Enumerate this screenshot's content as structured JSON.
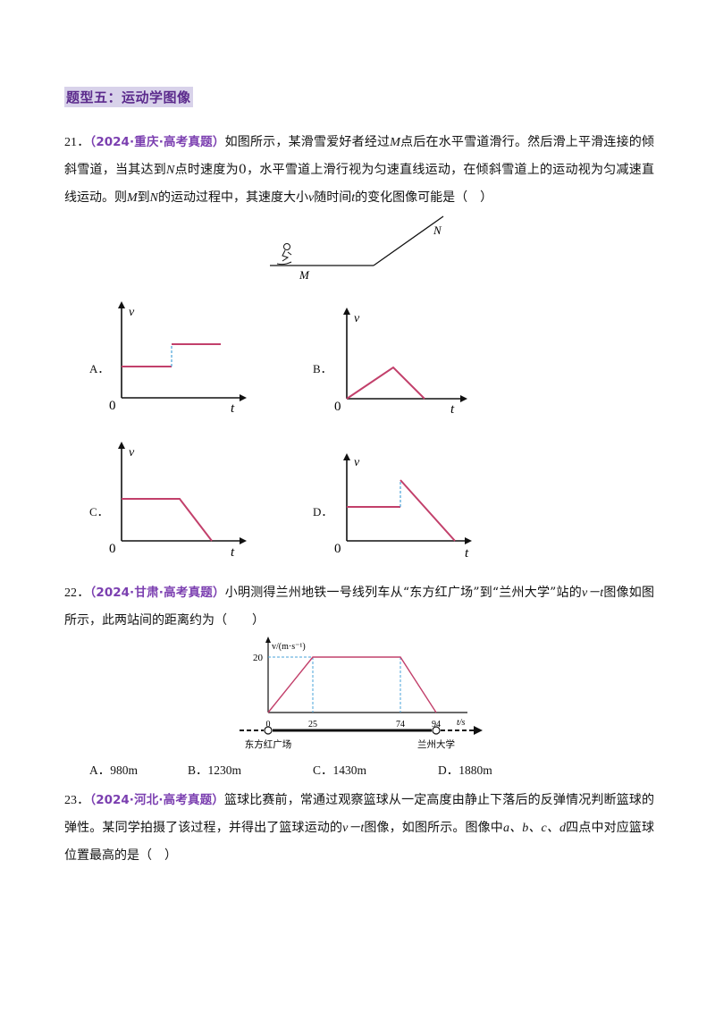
{
  "section": {
    "title": "题型五：运动学图像"
  },
  "q21": {
    "num": "21．",
    "source": "（2024·重庆·高考真题）",
    "text1": "如图所示，某滑雪爱好者经过",
    "M": "M",
    "text2": "点后在水平雪道滑行。然后滑上平滑连接的倾斜雪道，当其达到",
    "N": "N",
    "text3": "点时速度为0，水平雪道上滑行视为匀速直线运动，在倾斜雪道上的运动视为匀减速直线运动。则",
    "text4": "到",
    "text5": "的运动过程中，其速度大小",
    "v": "v",
    "text6": "随时间",
    "t": "t",
    "text7": "的变化图像可能是（　）",
    "figure": {
      "label_M": "M",
      "label_N": "N"
    },
    "options": [
      {
        "label": "A．",
        "axis_v": "v",
        "axis_t": "t",
        "origin": "0"
      },
      {
        "label": "B．",
        "axis_v": "v",
        "axis_t": "t",
        "origin": "0"
      },
      {
        "label": "C．",
        "axis_v": "v",
        "axis_t": "t",
        "origin": "0"
      },
      {
        "label": "D．",
        "axis_v": "v",
        "axis_t": "t",
        "origin": "0"
      }
    ]
  },
  "q22": {
    "num": "22．",
    "source": "（2024·甘肃·高考真题）",
    "text1": "小明测得兰州地铁一号线列车从“东方红广场”到“兰州大学”站的",
    "vt": "v－t",
    "text2": "图像如图所示，此两站间的距离约为（　　）",
    "chart_data": {
      "type": "line",
      "title": "",
      "xlabel": "t/s",
      "ylabel": "v/(m·s⁻¹)",
      "x": [
        0,
        25,
        74,
        94
      ],
      "y": [
        0,
        20,
        20,
        0
      ],
      "xticks": [
        "0",
        "25",
        "74",
        "94"
      ],
      "yticks": [
        "20"
      ],
      "stations": [
        "东方红广场",
        "兰州大学"
      ]
    },
    "choices": [
      "A．980m",
      "B．1230m",
      "C．1430m",
      "D．1880m"
    ]
  },
  "q23": {
    "num": "23．",
    "source": "（2024·河北·高考真题）",
    "text1": "篮球比赛前，常通过观察篮球从一定高度由静止下落后的反弹情况判断篮球的弹性。某同学拍摄了该过程，并得出了篮球运动的",
    "vt": "v－t",
    "text2": "图像，如图所示。图像中",
    "abcd": "a、b、c、d",
    "text3": "四点中对应篮球位置最高的是（　）"
  },
  "colors": {
    "curve": "#c2406b",
    "dash": "#4aa3d8",
    "axis": "#111111",
    "purple": "#7b3fb0"
  }
}
